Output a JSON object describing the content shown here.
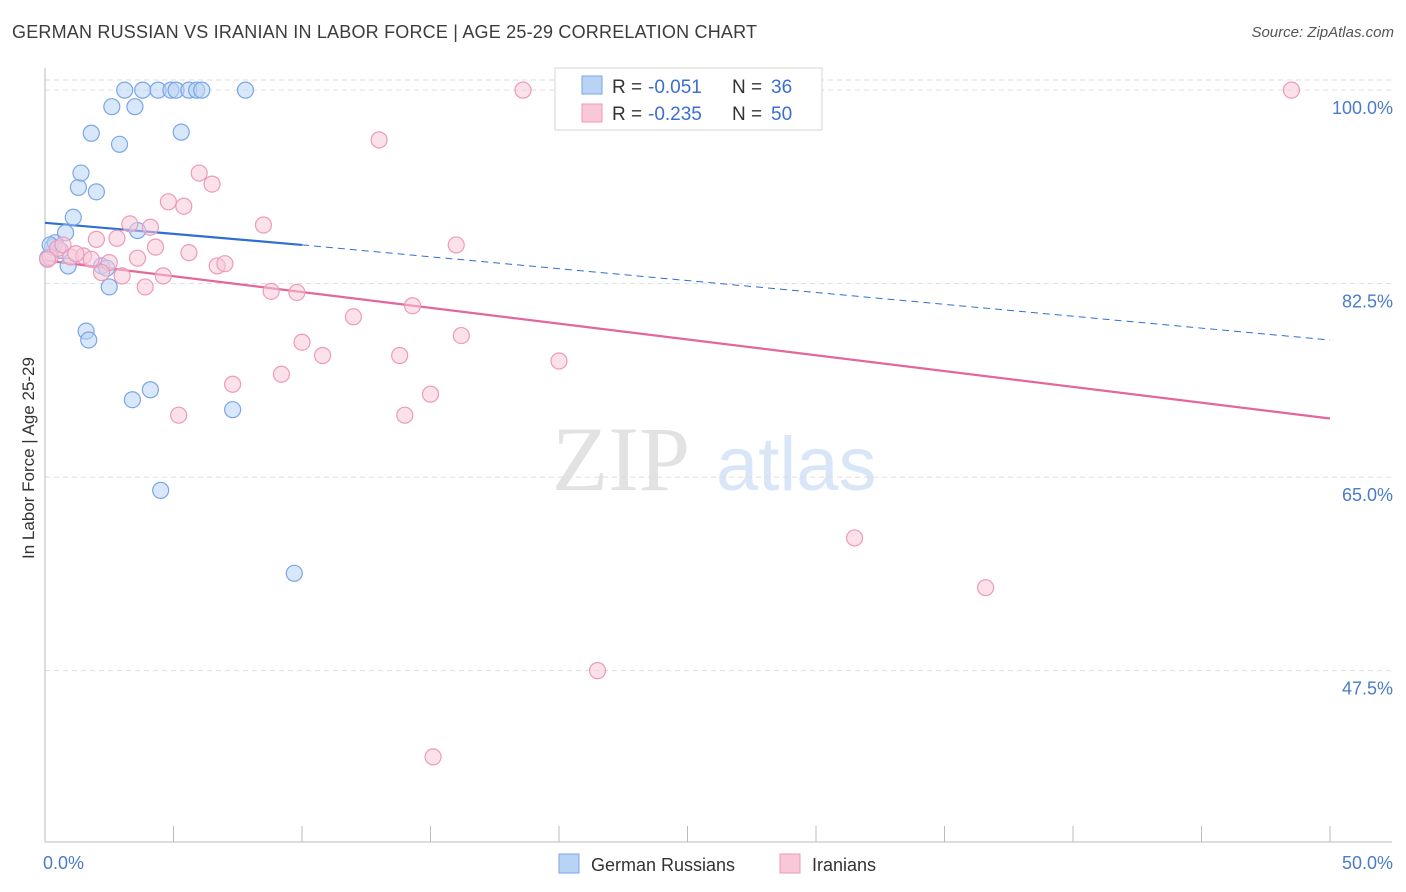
{
  "title": "GERMAN RUSSIAN VS IRANIAN IN LABOR FORCE | AGE 25-29 CORRELATION CHART",
  "source": "Source: ZipAtlas.com",
  "watermark": {
    "zip": "ZIP",
    "atlas": "atlas"
  },
  "colors": {
    "blue_fill": "#b9d3f5",
    "blue_stroke": "#7aa6e6",
    "blue_line": "#2f6fd1",
    "pink_fill": "#f8c8d8",
    "pink_stroke": "#ee9ab7",
    "pink_line": "#e3679a",
    "grid": "#dddddd",
    "axis_text": "#4a7cc9"
  },
  "chart_data": {
    "type": "scatter",
    "title": "GERMAN RUSSIAN VS IRANIAN IN LABOR FORCE | AGE 25-29 CORRELATION CHART",
    "xlabel": "",
    "ylabel": "In Labor Force | Age 25-29",
    "xlim": [
      0,
      50
    ],
    "ylim": [
      32,
      102
    ],
    "x_tick_labels": [
      "0.0%",
      "50.0%"
    ],
    "y_ticks": [
      47.5,
      65.0,
      82.5,
      100.0
    ],
    "y_tick_labels": [
      "47.5%",
      "65.0%",
      "82.5%",
      "100.0%"
    ],
    "grid": true,
    "legend_position": "top-center",
    "legend": [
      {
        "r_label": "R =",
        "r_value": "-0.051",
        "n_label": "N =",
        "n_value": "36"
      },
      {
        "r_label": "R =",
        "r_value": "-0.235",
        "n_label": "N =",
        "n_value": "50"
      }
    ],
    "series": [
      {
        "name": "German Russians",
        "color": "blue",
        "trend": {
          "x0": 0,
          "y0": 88.0,
          "x1": 10,
          "y1": 86.0,
          "x_dash_end": 50,
          "y_dash_end": 77.4
        },
        "points": [
          [
            0.1,
            84.8
          ],
          [
            0.3,
            85.8
          ],
          [
            0.4,
            86.2
          ],
          [
            0.6,
            85.5
          ],
          [
            0.8,
            87.1
          ],
          [
            0.9,
            84.1
          ],
          [
            1.1,
            88.5
          ],
          [
            1.3,
            91.2
          ],
          [
            1.4,
            92.5
          ],
          [
            1.6,
            78.2
          ],
          [
            1.7,
            77.4
          ],
          [
            1.8,
            96.1
          ],
          [
            2.0,
            90.8
          ],
          [
            2.2,
            84.1
          ],
          [
            2.4,
            83.9
          ],
          [
            2.5,
            82.2
          ],
          [
            2.6,
            98.5
          ],
          [
            2.9,
            95.1
          ],
          [
            3.1,
            100.0
          ],
          [
            3.4,
            72.0
          ],
          [
            3.5,
            98.5
          ],
          [
            3.6,
            87.3
          ],
          [
            3.8,
            100.0
          ],
          [
            4.1,
            72.9
          ],
          [
            4.4,
            100.0
          ],
          [
            4.5,
            63.8
          ],
          [
            4.9,
            100.0
          ],
          [
            5.1,
            100.0
          ],
          [
            5.3,
            96.2
          ],
          [
            5.6,
            100.0
          ],
          [
            5.9,
            100.0
          ],
          [
            6.1,
            100.0
          ],
          [
            7.3,
            71.1
          ],
          [
            7.8,
            100.0
          ],
          [
            9.7,
            56.3
          ],
          [
            0.2,
            86.0
          ]
        ]
      },
      {
        "name": "Iranians",
        "color": "pink",
        "trend": {
          "x0": 0,
          "y0": 84.6,
          "x1": 50,
          "y1": 70.3
        },
        "points": [
          [
            0.2,
            84.9
          ],
          [
            0.5,
            85.7
          ],
          [
            0.7,
            86.0
          ],
          [
            1.0,
            84.9
          ],
          [
            1.5,
            85.0
          ],
          [
            1.8,
            84.7
          ],
          [
            2.0,
            86.5
          ],
          [
            2.5,
            84.4
          ],
          [
            2.8,
            86.6
          ],
          [
            3.0,
            83.2
          ],
          [
            3.3,
            87.9
          ],
          [
            3.6,
            84.8
          ],
          [
            3.9,
            82.2
          ],
          [
            4.1,
            87.6
          ],
          [
            4.3,
            85.8
          ],
          [
            4.6,
            83.2
          ],
          [
            4.8,
            89.9
          ],
          [
            5.2,
            70.6
          ],
          [
            5.4,
            89.5
          ],
          [
            5.6,
            85.3
          ],
          [
            6.0,
            92.5
          ],
          [
            6.5,
            91.5
          ],
          [
            6.7,
            84.1
          ],
          [
            7.0,
            84.3
          ],
          [
            7.3,
            73.4
          ],
          [
            8.5,
            87.8
          ],
          [
            8.8,
            81.8
          ],
          [
            9.2,
            74.3
          ],
          [
            9.8,
            81.7
          ],
          [
            10.0,
            77.2
          ],
          [
            10.8,
            76.0
          ],
          [
            12.0,
            79.5
          ],
          [
            13.0,
            95.5
          ],
          [
            13.8,
            76.0
          ],
          [
            14.0,
            70.6
          ],
          [
            14.3,
            80.5
          ],
          [
            15.0,
            72.5
          ],
          [
            15.1,
            39.7
          ],
          [
            16.0,
            86.0
          ],
          [
            16.2,
            77.8
          ],
          [
            18.6,
            100.0
          ],
          [
            20.0,
            75.5
          ],
          [
            21.5,
            47.5
          ],
          [
            26.0,
            100.0
          ],
          [
            31.5,
            59.5
          ],
          [
            36.6,
            55.0
          ],
          [
            48.5,
            100.0
          ],
          [
            0.1,
            84.7
          ],
          [
            1.2,
            85.2
          ],
          [
            2.2,
            83.5
          ]
        ]
      }
    ]
  }
}
